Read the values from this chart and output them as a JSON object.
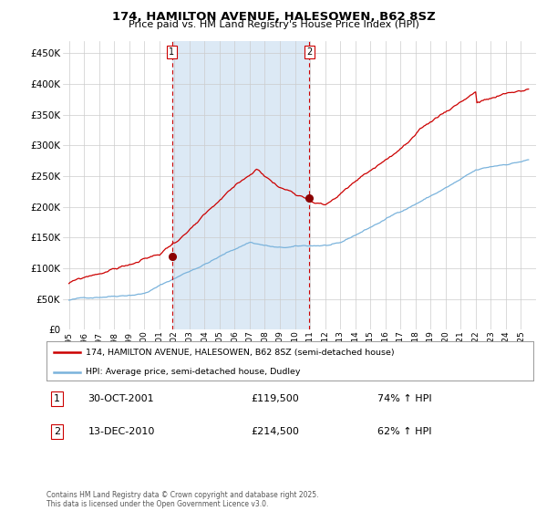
{
  "title": "174, HAMILTON AVENUE, HALESOWEN, B62 8SZ",
  "subtitle": "Price paid vs. HM Land Registry's House Price Index (HPI)",
  "legend_line1": "174, HAMILTON AVENUE, HALESOWEN, B62 8SZ (semi-detached house)",
  "legend_line2": "HPI: Average price, semi-detached house, Dudley",
  "footer": "Contains HM Land Registry data © Crown copyright and database right 2025.\nThis data is licensed under the Open Government Licence v3.0.",
  "purchase1_date": "30-OCT-2001",
  "purchase1_price": 119500,
  "purchase1_hpi": "74% ↑ HPI",
  "purchase2_date": "13-DEC-2010",
  "purchase2_price": 214500,
  "purchase2_hpi": "62% ↑ HPI",
  "hpi_color": "#7ab3dc",
  "price_color": "#cc0000",
  "bg_shaded": "#dce9f5",
  "vline_color": "#cc0000",
  "marker_color": "#8b0000",
  "grid_color": "#cccccc",
  "ylim": [
    0,
    470000
  ],
  "yticks": [
    0,
    50000,
    100000,
    150000,
    200000,
    250000,
    300000,
    350000,
    400000,
    450000
  ],
  "ytick_labels": [
    "£0",
    "£50K",
    "£100K",
    "£150K",
    "£200K",
    "£250K",
    "£300K",
    "£350K",
    "£400K",
    "£450K"
  ],
  "xlim_start": 1994.6,
  "xlim_end": 2026.0,
  "purchase1_x": 2001.83,
  "purchase2_x": 2010.95,
  "purchase1_y": 119500,
  "purchase2_y": 214500
}
